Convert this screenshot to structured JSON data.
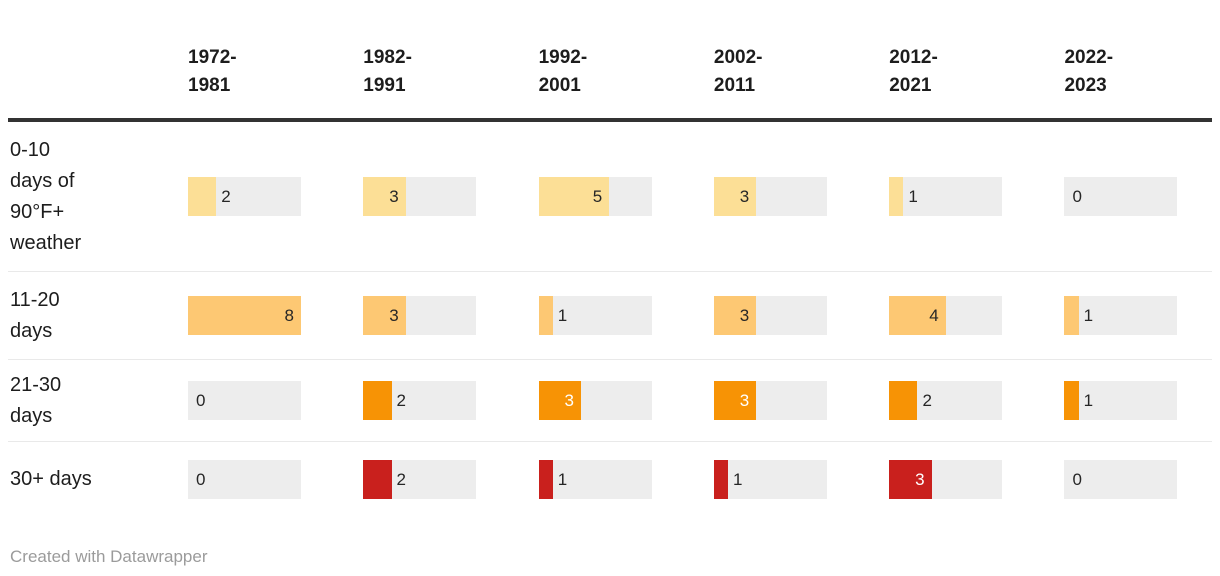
{
  "chart_data": {
    "type": "table",
    "title": "",
    "columns": [
      "1972-1981",
      "1982-1991",
      "1992-2001",
      "2002-2011",
      "2012-2021",
      "2022-2023"
    ],
    "rows": [
      {
        "name": "0-10 days of 90°F+ weather",
        "label_lines": [
          "0-10",
          "days of",
          "90°F+",
          "weather"
        ],
        "values": [
          2,
          3,
          5,
          3,
          1,
          0
        ],
        "bar_color": "#fcdf96",
        "value_color_inside": "#262626"
      },
      {
        "name": "11-20 days",
        "label_lines": [
          "11-20",
          "days"
        ],
        "values": [
          8,
          3,
          1,
          3,
          4,
          1
        ],
        "bar_color": "#fdc873",
        "value_color_inside": "#262626"
      },
      {
        "name": "21-30 days",
        "label_lines": [
          "21-30",
          "days"
        ],
        "values": [
          0,
          2,
          3,
          3,
          2,
          1
        ],
        "bar_color": "#f79305",
        "value_color_inside": "#ffffff"
      },
      {
        "name": "30+ days",
        "label_lines": [
          "30+ days"
        ],
        "values": [
          0,
          2,
          1,
          1,
          3,
          0
        ],
        "bar_color": "#c9201d",
        "value_color_inside": "#ffffff"
      }
    ],
    "scale_max": 8,
    "track_color": "#ededed",
    "value_color_outside": "#262626",
    "header_rule_color": "#333333",
    "row_divider_color": "#e9e9e9",
    "legend_position": "none",
    "grid": "off"
  },
  "footer": {
    "credit": "Created with Datawrapper"
  }
}
